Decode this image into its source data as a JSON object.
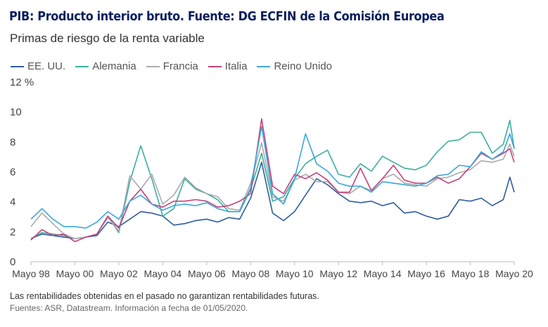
{
  "header": {
    "title": "PIB: Producto interior bruto. Fuente: DG ECFIN de la Comisión Europea"
  },
  "footer": {
    "disclaimer": "Las rentabilidades obtenidas en el pasado no garantizan rentabilidades futuras.",
    "sources": "Fuentes: ASR, Datastream. Información a fecha de 01/05/2020."
  },
  "chart_data": {
    "type": "line",
    "title": "Primas de riesgo de la renta variable",
    "ylabel": "%",
    "ylim": [
      0,
      12
    ],
    "yticks": [
      0,
      2,
      4,
      6,
      8,
      10,
      12
    ],
    "ytick_labels": [
      "0",
      "2",
      "4",
      "6",
      "8",
      "10",
      "12 %"
    ],
    "xlim": [
      1998.37,
      2020.37
    ],
    "xticks": [
      1998.37,
      2000.37,
      2002.37,
      2004.37,
      2006.37,
      2008.37,
      2010.37,
      2012.37,
      2014.37,
      2016.37,
      2018.37,
      2020.37
    ],
    "xtick_labels": [
      "Mayo 98",
      "Mayo 00",
      "Mayo 02",
      "Mayo 04",
      "Mayo 06",
      "Mayo 08",
      "Mayo 10",
      "Mayo 12",
      "Mayo 14",
      "Mayo 16",
      "Mayo 18",
      "Mayo 20"
    ],
    "legend_position": "top-left",
    "x_offsets_years": [
      0,
      0.5,
      1,
      1.5,
      2,
      2.5,
      3,
      3.5,
      4,
      4.5,
      5,
      5.5,
      6,
      6.5,
      7,
      7.5,
      8,
      8.5,
      9,
      9.5,
      10,
      10.5,
      11,
      11.5,
      12,
      12.5,
      13,
      13.5,
      14,
      14.5,
      15,
      15.5,
      16,
      16.5,
      17,
      17.5,
      18,
      18.5,
      19,
      19.5,
      20,
      20.5,
      21,
      21.5,
      21.8,
      22
    ],
    "series": [
      {
        "name": "EE. UU.",
        "color": "#2d5d9f",
        "values": [
          1.5,
          1.8,
          1.7,
          1.6,
          1.5,
          1.6,
          1.7,
          2.6,
          2.3,
          2.8,
          3.3,
          3.2,
          3.0,
          2.4,
          2.5,
          2.7,
          2.8,
          2.6,
          2.9,
          2.8,
          4.2,
          6.6,
          3.2,
          2.7,
          3.3,
          4.4,
          5.5,
          5.1,
          4.5,
          4.0,
          3.9,
          4.0,
          3.7,
          3.9,
          3.2,
          3.3,
          3.0,
          2.8,
          3.0,
          4.1,
          4.0,
          4.2,
          3.7,
          4.1,
          5.6,
          4.6
        ]
      },
      {
        "name": "Alemania",
        "color": "#3cae9f",
        "values": [
          1.5,
          1.9,
          1.8,
          1.7,
          1.5,
          1.6,
          1.8,
          3.0,
          1.9,
          5.3,
          7.7,
          5.5,
          3.0,
          3.5,
          5.5,
          4.8,
          4.5,
          4.1,
          3.3,
          3.3,
          4.8,
          7.2,
          4.0,
          4.3,
          5.5,
          6.5,
          7.0,
          7.4,
          5.8,
          5.6,
          6.5,
          6.0,
          7.0,
          6.6,
          6.2,
          6.1,
          6.4,
          7.3,
          8.0,
          8.1,
          8.6,
          8.6,
          7.2,
          7.8,
          9.4,
          7.5
        ]
      },
      {
        "name": "Francia",
        "color": "#ababab",
        "values": [
          2.3,
          3.2,
          2.5,
          1.8,
          1.5,
          1.6,
          1.8,
          2.9,
          2.0,
          5.7,
          4.8,
          5.8,
          3.8,
          4.4,
          5.6,
          4.9,
          4.5,
          4.3,
          3.5,
          3.4,
          5.2,
          7.9,
          4.3,
          4.0,
          5.4,
          5.8,
          5.3,
          5.3,
          4.6,
          4.5,
          5.0,
          4.7,
          5.5,
          5.8,
          5.2,
          5.1,
          5.0,
          5.5,
          5.6,
          5.9,
          6.1,
          6.7,
          6.6,
          6.8,
          7.8,
          7.0
        ]
      },
      {
        "name": "Italia",
        "color": "#c2427b",
        "values": [
          1.4,
          2.1,
          1.7,
          1.8,
          1.3,
          1.6,
          1.8,
          3.0,
          2.2,
          4.0,
          4.8,
          3.8,
          3.6,
          4.0,
          4.0,
          4.1,
          4.0,
          3.6,
          3.7,
          4.0,
          4.5,
          9.5,
          5.0,
          4.5,
          5.8,
          5.5,
          5.9,
          5.4,
          4.6,
          4.6,
          6.2,
          4.7,
          5.5,
          6.4,
          5.4,
          5.2,
          5.2,
          5.6,
          5.2,
          5.5,
          6.3,
          7.2,
          6.8,
          7.2,
          7.5,
          6.6
        ]
      },
      {
        "name": "Reino Unido",
        "color": "#3ba7d9",
        "values": [
          2.8,
          3.5,
          2.8,
          2.3,
          2.3,
          2.2,
          2.6,
          3.3,
          2.8,
          4.0,
          4.4,
          3.8,
          3.4,
          3.7,
          3.8,
          3.7,
          3.9,
          3.5,
          3.3,
          3.3,
          4.9,
          9.0,
          4.5,
          3.8,
          5.5,
          8.5,
          6.5,
          6.0,
          5.2,
          5.0,
          5.0,
          4.6,
          5.3,
          5.2,
          5.1,
          5.0,
          5.2,
          5.7,
          5.8,
          6.4,
          6.3,
          7.3,
          6.8,
          7.3,
          8.5,
          7.5
        ]
      }
    ]
  }
}
